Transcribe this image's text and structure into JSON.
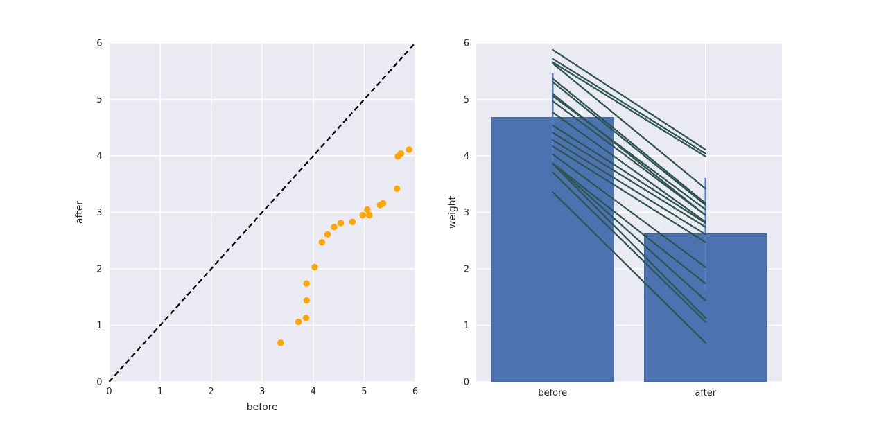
{
  "figure": {
    "background": "#ffffff",
    "axes_background": "#eaeaf2",
    "grid_color": "#ffffff",
    "text_color": "#262626"
  },
  "chart_data": [
    {
      "type": "scatter",
      "panel": "left",
      "title": "",
      "xlabel": "before",
      "ylabel": "after",
      "xlim": [
        0,
        6
      ],
      "ylim": [
        0,
        6
      ],
      "xticks": [
        "0",
        "1",
        "2",
        "3",
        "4",
        "5",
        "6"
      ],
      "yticks": [
        "0",
        "1",
        "2",
        "3",
        "4",
        "5",
        "6"
      ],
      "grid": true,
      "legend": false,
      "point_color": "#ffa500",
      "identity_line": {
        "from": [
          0,
          0
        ],
        "to": [
          6,
          6
        ],
        "color": "#000000",
        "style": "dashed",
        "width": 2.3
      },
      "points": [
        [
          3.36,
          0.69
        ],
        [
          3.71,
          1.06
        ],
        [
          3.86,
          1.13
        ],
        [
          3.87,
          1.44
        ],
        [
          3.87,
          1.74
        ],
        [
          4.03,
          2.03
        ],
        [
          4.17,
          2.47
        ],
        [
          4.28,
          2.61
        ],
        [
          4.41,
          2.74
        ],
        [
          4.54,
          2.81
        ],
        [
          4.77,
          2.83
        ],
        [
          4.97,
          2.95
        ],
        [
          5.06,
          3.05
        ],
        [
          5.1,
          2.95
        ],
        [
          5.31,
          3.13
        ],
        [
          5.37,
          3.16
        ],
        [
          5.64,
          3.42
        ],
        [
          5.66,
          3.99
        ],
        [
          5.72,
          4.04
        ],
        [
          5.88,
          4.11
        ]
      ]
    },
    {
      "type": "bar",
      "panel": "right",
      "title": "",
      "xlabel": "",
      "ylabel": "weight",
      "ylim": [
        0,
        6
      ],
      "yticks": [
        "0",
        "1",
        "2",
        "3",
        "4",
        "5",
        "6"
      ],
      "grid": true,
      "legend": false,
      "categories": [
        "before",
        "after"
      ],
      "values": [
        4.68,
        2.62
      ],
      "error_low": [
        3.91,
        1.63
      ],
      "error_high": [
        5.46,
        3.61
      ],
      "bar_color": "#4c72b0",
      "bar_edge_color": "#3f639c",
      "error_color": "#5680c1",
      "pair_line_color": "#2e5550",
      "paired_values": [
        [
          3.36,
          0.69
        ],
        [
          3.71,
          1.06
        ],
        [
          3.86,
          1.13
        ],
        [
          3.87,
          1.44
        ],
        [
          3.87,
          1.74
        ],
        [
          4.03,
          2.03
        ],
        [
          4.17,
          2.47
        ],
        [
          4.28,
          2.61
        ],
        [
          4.41,
          2.74
        ],
        [
          4.54,
          2.81
        ],
        [
          4.77,
          2.83
        ],
        [
          4.97,
          2.95
        ],
        [
          5.06,
          3.05
        ],
        [
          5.1,
          2.95
        ],
        [
          5.31,
          3.13
        ],
        [
          5.37,
          3.16
        ],
        [
          5.64,
          3.42
        ],
        [
          5.66,
          3.99
        ],
        [
          5.72,
          4.04
        ],
        [
          5.88,
          4.11
        ]
      ]
    }
  ]
}
